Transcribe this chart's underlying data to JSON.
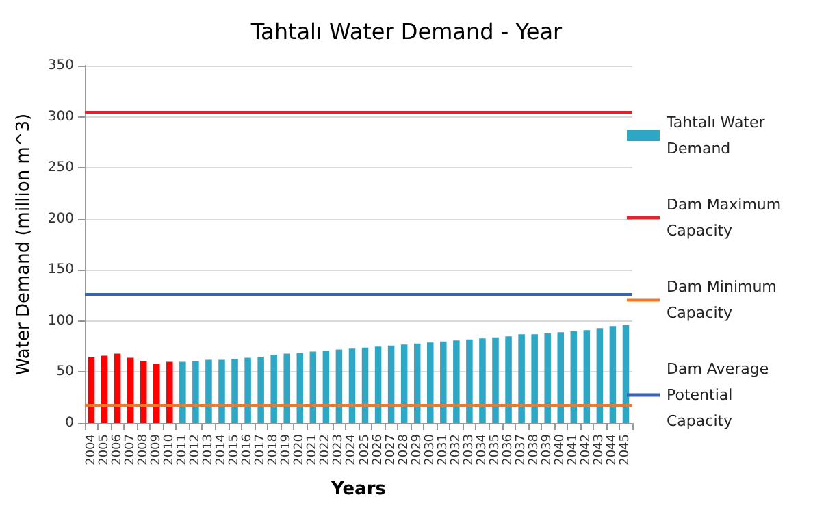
{
  "chart_data": {
    "type": "bar",
    "title": "Tahtalı Water Demand - Year",
    "xlabel": "Years",
    "ylabel": "Water Demand (million m^3)",
    "categories": [
      "2004",
      "2005",
      "2006",
      "2007",
      "2008",
      "2009",
      "2010",
      "2011",
      "2012",
      "2013",
      "2014",
      "2015",
      "2016",
      "2017",
      "2018",
      "2019",
      "2020",
      "2021",
      "2022",
      "2023",
      "2024",
      "2025",
      "2026",
      "2027",
      "2028",
      "2029",
      "2030",
      "2031",
      "2032",
      "2033",
      "2034",
      "2035",
      "2036",
      "2037",
      "2038",
      "2039",
      "2040",
      "2041",
      "2042",
      "2043",
      "2044",
      "2045"
    ],
    "series": [
      {
        "name": "Tahtalı Water Demand",
        "color": "#2ea7c4",
        "colors": [
          "#ff0000",
          "#ff0000",
          "#ff0000",
          "#ff0000",
          "#ff0000",
          "#ff0000",
          "#ff0000",
          "#2ea7c4",
          "#2ea7c4",
          "#2ea7c4",
          "#2ea7c4",
          "#2ea7c4",
          "#2ea7c4",
          "#2ea7c4",
          "#2ea7c4",
          "#2ea7c4",
          "#2ea7c4",
          "#2ea7c4",
          "#2ea7c4",
          "#2ea7c4",
          "#2ea7c4",
          "#2ea7c4",
          "#2ea7c4",
          "#2ea7c4",
          "#2ea7c4",
          "#2ea7c4",
          "#2ea7c4",
          "#2ea7c4",
          "#2ea7c4",
          "#2ea7c4",
          "#2ea7c4",
          "#2ea7c4",
          "#2ea7c4",
          "#2ea7c4",
          "#2ea7c4",
          "#2ea7c4",
          "#2ea7c4",
          "#2ea7c4",
          "#2ea7c4",
          "#2ea7c4",
          "#2ea7c4",
          "#2ea7c4"
        ],
        "values": [
          65,
          66,
          68,
          64,
          61,
          58,
          60,
          60,
          61,
          62,
          62,
          63,
          64,
          65,
          67,
          68,
          69,
          70,
          71,
          72,
          73,
          74,
          75,
          76,
          77,
          78,
          79,
          80,
          81,
          82,
          83,
          84,
          85,
          87,
          87,
          88,
          89,
          90,
          91,
          93,
          95,
          96
        ]
      }
    ],
    "ref_lines": [
      {
        "axis": "y",
        "value": 305,
        "label": "Dam Maximum Capacity",
        "color": "#e8202a"
      },
      {
        "axis": "y",
        "value": 18,
        "label": "Dam Minimum Capacity",
        "color": "#f07828"
      },
      {
        "axis": "y",
        "value": 127,
        "label": "Dam Average Potential Capacity",
        "color": "#3a62b0"
      }
    ],
    "ylim": [
      0,
      350
    ],
    "yticks": [
      0,
      50,
      100,
      150,
      200,
      250,
      300,
      350
    ],
    "grid": "y",
    "legend": "right"
  }
}
